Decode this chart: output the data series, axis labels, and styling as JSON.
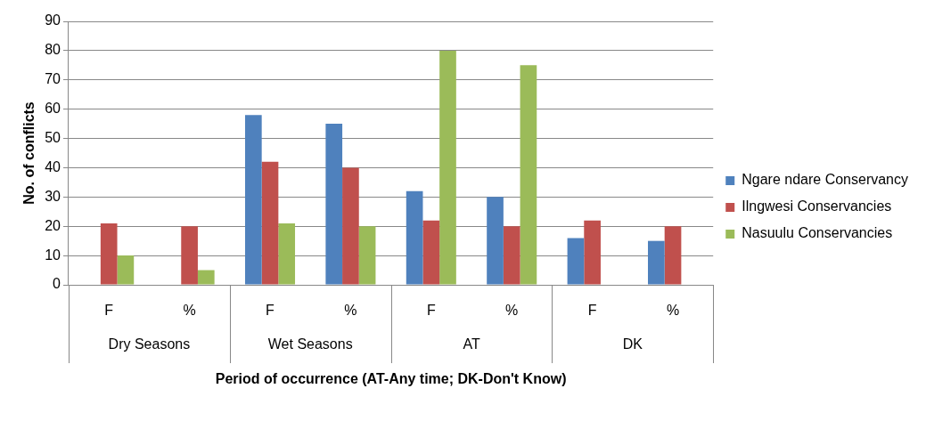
{
  "chart_data": {
    "type": "bar",
    "xlabel": "Period of occurrence (AT-Any time; DK-Don't Know)",
    "ylabel": "No. of conflicts",
    "categories": [
      "F",
      "%",
      "F",
      "%",
      "F",
      "%",
      "F",
      "%"
    ],
    "annotations": [
      "Dry Seasons",
      "Wet Seasons",
      "AT",
      "DK"
    ],
    "series": [
      {
        "name": "Ngare ndare Conservancy",
        "color": "#4f81bd",
        "values": [
          null,
          null,
          58,
          55,
          32,
          30,
          16,
          15
        ]
      },
      {
        "name": "Ilngwesi Conservancies",
        "color": "#c0504d",
        "values": [
          21,
          20,
          42,
          40,
          22,
          20,
          22,
          20
        ]
      },
      {
        "name": "Nasuulu Conservancies",
        "color": "#9bbb59",
        "values": [
          10,
          5,
          21,
          20,
          80,
          75,
          null,
          null
        ]
      }
    ],
    "ylim": [
      0,
      90
    ],
    "yticks": [
      0,
      10,
      20,
      30,
      40,
      50,
      60,
      70,
      80,
      90
    ],
    "grid": "y",
    "legend": "right"
  }
}
